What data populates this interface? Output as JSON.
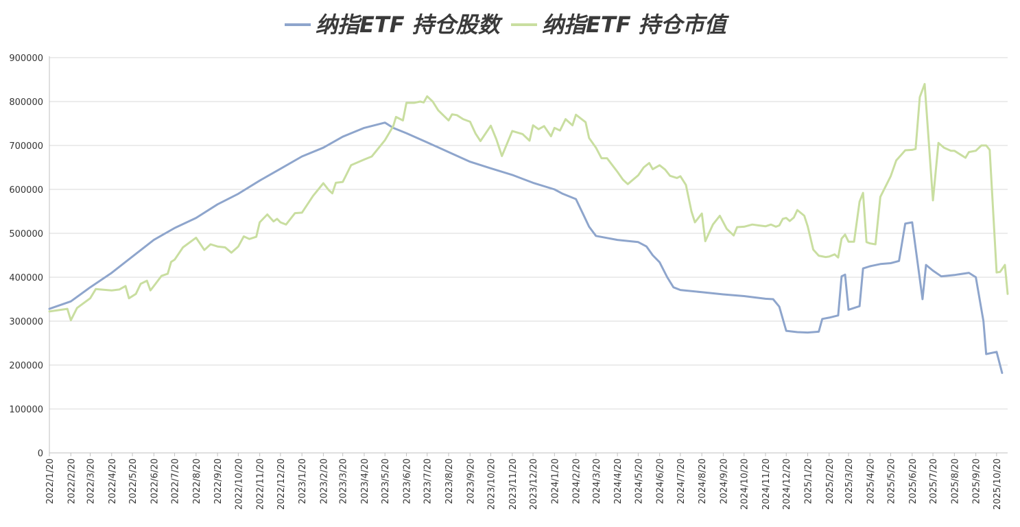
{
  "chart_data": {
    "type": "line",
    "title": "",
    "xlabel": "",
    "ylabel": "",
    "ylim": [
      0,
      900000
    ],
    "yticks": [
      "0",
      "100000",
      "200000",
      "300000",
      "400000",
      "500000",
      "600000",
      "700000",
      "800000",
      "900000"
    ],
    "x_tick_labels": [
      "2022/1/20",
      "2022/2/20",
      "2022/3/20",
      "2022/4/20",
      "2022/5/20",
      "2022/6/20",
      "2022/7/20",
      "2022/8/20",
      "2022/9/20",
      "2022/10/20",
      "2022/11/20",
      "2022/12/20",
      "2023/1/20",
      "2023/2/20",
      "2023/3/20",
      "2023/4/20",
      "2023/5/20",
      "2023/6/20",
      "2023/7/20",
      "2023/8/20",
      "2023/9/20",
      "2023/10/20",
      "2023/11/20",
      "2023/12/20",
      "2024/1/20",
      "2024/2/20",
      "2024/3/20",
      "2024/4/20",
      "2024/5/20",
      "2024/6/20",
      "2024/7/20",
      "2024/8/20",
      "2024/9/20",
      "2024/10/20",
      "2024/11/20",
      "2024/12/20",
      "2025/1/20",
      "2025/2/20",
      "2025/3/20",
      "2025/4/20",
      "2025/5/20",
      "2025/6/20",
      "2025/7/20",
      "2025/8/20",
      "2025/9/20",
      "2025/10/20"
    ],
    "grid": true,
    "legend_position": "top",
    "series": [
      {
        "name": "纳指ETF 持仓股数",
        "color": "#8EA5CC",
        "points": [
          [
            "2022/1/20",
            328000
          ],
          [
            "2022/2/20",
            345000
          ],
          [
            "2022/3/20",
            377000
          ],
          [
            "2022/4/20",
            410000
          ],
          [
            "2022/5/20",
            447000
          ],
          [
            "2022/6/20",
            485000
          ],
          [
            "2022/7/20",
            512000
          ],
          [
            "2022/8/20",
            535000
          ],
          [
            "2022/9/20",
            566000
          ],
          [
            "2022/10/20",
            590000
          ],
          [
            "2022/11/20",
            620000
          ],
          [
            "2022/12/20",
            647000
          ],
          [
            "2023/1/20",
            675000
          ],
          [
            "2023/2/20",
            695000
          ],
          [
            "2023/3/20",
            720000
          ],
          [
            "2023/4/20",
            740000
          ],
          [
            "2023/5/20",
            752000
          ],
          [
            "2023/6/1",
            740000
          ],
          [
            "2023/6/20",
            728000
          ],
          [
            "2023/7/20",
            707000
          ],
          [
            "2023/8/20",
            685000
          ],
          [
            "2023/9/20",
            663000
          ],
          [
            "2023/10/20",
            648000
          ],
          [
            "2023/11/20",
            633000
          ],
          [
            "2023/12/20",
            615000
          ],
          [
            "2024/1/20",
            600000
          ],
          [
            "2024/2/1",
            590000
          ],
          [
            "2024/2/20",
            578000
          ],
          [
            "2024/3/1",
            545000
          ],
          [
            "2024/3/10",
            515000
          ],
          [
            "2024/3/20",
            494000
          ],
          [
            "2024/4/20",
            485000
          ],
          [
            "2024/5/20",
            480000
          ],
          [
            "2024/6/1",
            470000
          ],
          [
            "2024/6/10",
            450000
          ],
          [
            "2024/6/20",
            434000
          ],
          [
            "2024/7/1",
            400000
          ],
          [
            "2024/7/10",
            377000
          ],
          [
            "2024/7/20",
            371000
          ],
          [
            "2024/8/20",
            366000
          ],
          [
            "2024/9/20",
            361000
          ],
          [
            "2024/10/20",
            357000
          ],
          [
            "2024/11/20",
            351000
          ],
          [
            "2024/12/1",
            350000
          ],
          [
            "2024/12/10",
            333000
          ],
          [
            "2024/12/20",
            278000
          ],
          [
            "2025/1/5",
            275000
          ],
          [
            "2025/1/20",
            274000
          ],
          [
            "2025/2/5",
            276000
          ],
          [
            "2025/2/10",
            305000
          ],
          [
            "2025/2/20",
            308000
          ],
          [
            "2025/3/5",
            313000
          ],
          [
            "2025/3/10",
            402000
          ],
          [
            "2025/3/15",
            406000
          ],
          [
            "2025/3/20",
            326000
          ],
          [
            "2025/4/5",
            334000
          ],
          [
            "2025/4/10",
            420000
          ],
          [
            "2025/4/20",
            425000
          ],
          [
            "2025/5/5",
            430000
          ],
          [
            "2025/5/20",
            432000
          ],
          [
            "2025/6/1",
            437000
          ],
          [
            "2025/6/10",
            522000
          ],
          [
            "2025/6/20",
            525000
          ],
          [
            "2025/7/5",
            350000
          ],
          [
            "2025/7/10",
            428000
          ],
          [
            "2025/7/20",
            415000
          ],
          [
            "2025/8/1",
            402000
          ],
          [
            "2025/8/20",
            405000
          ],
          [
            "2025/9/10",
            410000
          ],
          [
            "2025/9/20",
            400000
          ],
          [
            "2025/10/1",
            300000
          ],
          [
            "2025/10/5",
            225000
          ],
          [
            "2025/10/20",
            230000
          ],
          [
            "2025/10/28",
            182000
          ]
        ]
      },
      {
        "name": "纳指ETF 持仓市值",
        "color": "#C9DEA0",
        "points": [
          [
            "2022/1/20",
            322000
          ],
          [
            "2022/2/15",
            328000
          ],
          [
            "2022/2/20",
            302000
          ],
          [
            "2022/3/1",
            330000
          ],
          [
            "2022/3/20",
            352000
          ],
          [
            "2022/3/28",
            373000
          ],
          [
            "2022/4/20",
            370000
          ],
          [
            "2022/5/1",
            372000
          ],
          [
            "2022/5/10",
            380000
          ],
          [
            "2022/5/15",
            352000
          ],
          [
            "2022/5/25",
            362000
          ],
          [
            "2022/6/1",
            385000
          ],
          [
            "2022/6/10",
            392000
          ],
          [
            "2022/6/15",
            370000
          ],
          [
            "2022/6/20",
            380000
          ],
          [
            "2022/7/1",
            403000
          ],
          [
            "2022/7/10",
            408000
          ],
          [
            "2022/7/15",
            435000
          ],
          [
            "2022/7/20",
            440000
          ],
          [
            "2022/8/1",
            468000
          ],
          [
            "2022/8/20",
            490000
          ],
          [
            "2022/9/1",
            462000
          ],
          [
            "2022/9/10",
            475000
          ],
          [
            "2022/9/20",
            470000
          ],
          [
            "2022/10/1",
            468000
          ],
          [
            "2022/10/10",
            456000
          ],
          [
            "2022/10/20",
            470000
          ],
          [
            "2022/10/28",
            493000
          ],
          [
            "2022/11/5",
            487000
          ],
          [
            "2022/11/15",
            492000
          ],
          [
            "2022/11/20",
            525000
          ],
          [
            "2022/12/1",
            543000
          ],
          [
            "2022/12/10",
            527000
          ],
          [
            "2022/12/15",
            533000
          ],
          [
            "2022/12/20",
            525000
          ],
          [
            "2022/12/28",
            520000
          ],
          [
            "2023/1/10",
            546000
          ],
          [
            "2023/1/20",
            547000
          ],
          [
            "2023/2/5",
            585000
          ],
          [
            "2023/2/20",
            614000
          ],
          [
            "2023/2/28",
            598000
          ],
          [
            "2023/3/5",
            591000
          ],
          [
            "2023/3/10",
            615000
          ],
          [
            "2023/3/20",
            617000
          ],
          [
            "2023/4/1",
            655000
          ],
          [
            "2023/4/20",
            668000
          ],
          [
            "2023/5/1",
            675000
          ],
          [
            "2023/5/20",
            712000
          ],
          [
            "2023/6/1",
            744000
          ],
          [
            "2023/6/5",
            765000
          ],
          [
            "2023/6/15",
            757000
          ],
          [
            "2023/6/20",
            797000
          ],
          [
            "2023/7/1",
            797000
          ],
          [
            "2023/7/10",
            800000
          ],
          [
            "2023/7/15",
            798000
          ],
          [
            "2023/7/20",
            812000
          ],
          [
            "2023/7/28",
            800000
          ],
          [
            "2023/8/5",
            780000
          ],
          [
            "2023/8/20",
            757000
          ],
          [
            "2023/8/25",
            771000
          ],
          [
            "2023/9/1",
            769000
          ],
          [
            "2023/9/10",
            760000
          ],
          [
            "2023/9/20",
            754000
          ],
          [
            "2023/9/28",
            727000
          ],
          [
            "2023/10/5",
            710000
          ],
          [
            "2023/10/20",
            745000
          ],
          [
            "2023/10/28",
            714000
          ],
          [
            "2023/11/5",
            676000
          ],
          [
            "2023/11/20",
            733000
          ],
          [
            "2023/12/5",
            726000
          ],
          [
            "2023/12/15",
            711000
          ],
          [
            "2023/12/20",
            746000
          ],
          [
            "2023/12/28",
            737000
          ],
          [
            "2024/1/5",
            744000
          ],
          [
            "2024/1/15",
            721000
          ],
          [
            "2024/1/20",
            740000
          ],
          [
            "2024/1/28",
            734000
          ],
          [
            "2024/2/5",
            760000
          ],
          [
            "2024/2/15",
            746000
          ],
          [
            "2024/2/20",
            770000
          ],
          [
            "2024/3/5",
            753000
          ],
          [
            "2024/3/10",
            717000
          ],
          [
            "2024/3/20",
            695000
          ],
          [
            "2024/3/28",
            671000
          ],
          [
            "2024/4/5",
            671000
          ],
          [
            "2024/4/20",
            640000
          ],
          [
            "2024/4/28",
            622000
          ],
          [
            "2024/5/5",
            612000
          ],
          [
            "2024/5/20",
            632000
          ],
          [
            "2024/5/28",
            650000
          ],
          [
            "2024/6/5",
            660000
          ],
          [
            "2024/6/10",
            646000
          ],
          [
            "2024/6/20",
            655000
          ],
          [
            "2024/6/28",
            645000
          ],
          [
            "2024/7/5",
            631000
          ],
          [
            "2024/7/15",
            626000
          ],
          [
            "2024/7/20",
            630000
          ],
          [
            "2024/7/28",
            610000
          ],
          [
            "2024/8/5",
            550000
          ],
          [
            "2024/8/10",
            525000
          ],
          [
            "2024/8/20",
            545000
          ],
          [
            "2024/8/25",
            482000
          ],
          [
            "2024/9/5",
            520000
          ],
          [
            "2024/9/15",
            540000
          ],
          [
            "2024/9/25",
            510000
          ],
          [
            "2024/10/5",
            495000
          ],
          [
            "2024/10/10",
            514000
          ],
          [
            "2024/10/20",
            515000
          ],
          [
            "2024/11/1",
            520000
          ],
          [
            "2024/11/10",
            518000
          ],
          [
            "2024/11/20",
            516000
          ],
          [
            "2024/11/28",
            520000
          ],
          [
            "2024/12/5",
            515000
          ],
          [
            "2024/12/10",
            518000
          ],
          [
            "2024/12/15",
            533000
          ],
          [
            "2024/12/20",
            535000
          ],
          [
            "2024/12/25",
            528000
          ],
          [
            "2024/12/31",
            536000
          ],
          [
            "2025/1/5",
            553000
          ],
          [
            "2025/1/15",
            540000
          ],
          [
            "2025/1/20",
            516000
          ],
          [
            "2025/1/28",
            463000
          ],
          [
            "2025/2/5",
            449000
          ],
          [
            "2025/2/15",
            446000
          ],
          [
            "2025/2/20",
            447000
          ],
          [
            "2025/2/28",
            452000
          ],
          [
            "2025/3/5",
            445000
          ],
          [
            "2025/3/10",
            488000
          ],
          [
            "2025/3/15",
            497000
          ],
          [
            "2025/3/20",
            481000
          ],
          [
            "2025/3/28",
            481000
          ],
          [
            "2025/4/5",
            572000
          ],
          [
            "2025/4/10",
            592000
          ],
          [
            "2025/4/15",
            480000
          ],
          [
            "2025/4/20",
            477000
          ],
          [
            "2025/4/28",
            475000
          ],
          [
            "2025/5/5",
            583000
          ],
          [
            "2025/5/20",
            630000
          ],
          [
            "2025/5/28",
            666000
          ],
          [
            "2025/6/5",
            680000
          ],
          [
            "2025/6/10",
            689000
          ],
          [
            "2025/6/20",
            690000
          ],
          [
            "2025/6/25",
            692000
          ],
          [
            "2025/7/1",
            810000
          ],
          [
            "2025/7/8",
            840000
          ],
          [
            "2025/7/20",
            575000
          ],
          [
            "2025/7/28",
            706000
          ],
          [
            "2025/8/5",
            695000
          ],
          [
            "2025/8/15",
            688000
          ],
          [
            "2025/8/20",
            688000
          ],
          [
            "2025/8/28",
            680000
          ],
          [
            "2025/9/5",
            672000
          ],
          [
            "2025/9/10",
            685000
          ],
          [
            "2025/9/20",
            688000
          ],
          [
            "2025/9/28",
            700000
          ],
          [
            "2025/10/5",
            700000
          ],
          [
            "2025/10/10",
            690000
          ],
          [
            "2025/10/20",
            411000
          ],
          [
            "2025/10/25",
            412000
          ],
          [
            "2025/11/1",
            428000
          ],
          [
            "2025/11/5",
            362000
          ]
        ]
      }
    ]
  }
}
